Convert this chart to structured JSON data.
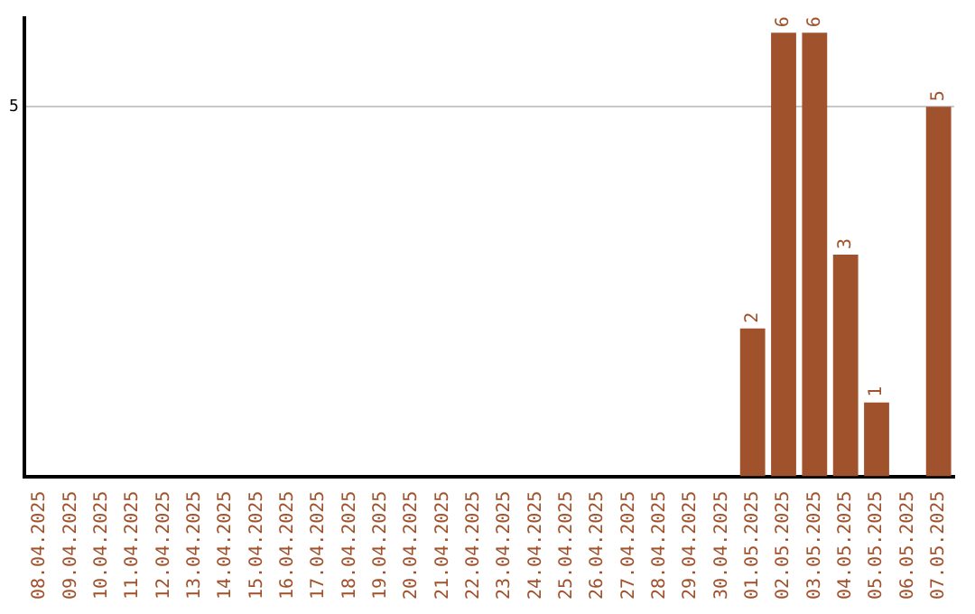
{
  "chart_data": {
    "type": "bar",
    "categories": [
      "08.04.2025",
      "09.04.2025",
      "10.04.2025",
      "11.04.2025",
      "12.04.2025",
      "13.04.2025",
      "14.04.2025",
      "15.04.2025",
      "16.04.2025",
      "17.04.2025",
      "18.04.2025",
      "19.04.2025",
      "20.04.2025",
      "21.04.2025",
      "22.04.2025",
      "23.04.2025",
      "24.04.2025",
      "25.04.2025",
      "26.04.2025",
      "27.04.2025",
      "28.04.2025",
      "29.04.2025",
      "30.04.2025",
      "01.05.2025",
      "02.05.2025",
      "03.05.2025",
      "04.05.2025",
      "05.05.2025",
      "06.05.2025",
      "07.05.2025"
    ],
    "values": [
      null,
      null,
      null,
      null,
      null,
      null,
      null,
      null,
      null,
      null,
      null,
      null,
      null,
      null,
      null,
      null,
      null,
      null,
      null,
      null,
      null,
      null,
      null,
      2,
      6,
      6,
      3,
      1,
      null,
      5
    ],
    "color": "#a0522d",
    "ylim": [
      0,
      6.2
    ],
    "yticks": [
      5
    ],
    "grid": "y",
    "data_labels": true,
    "legend": false
  }
}
